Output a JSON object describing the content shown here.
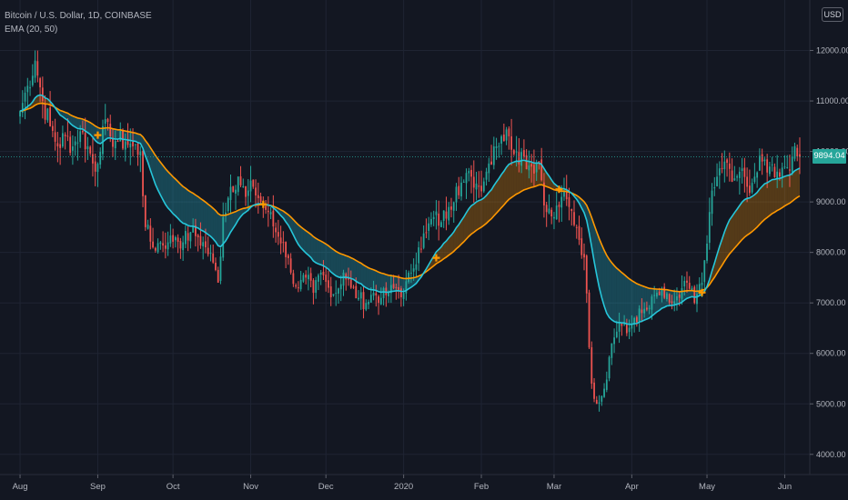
{
  "header": {
    "symbol_line": "Bitcoin / U.S. Dollar, 1D, COINBASE",
    "indicator_line": "EMA (20, 50)",
    "currency_button": "USD"
  },
  "price_badge": "9894.04",
  "colors": {
    "background": "#131722",
    "grid": "#1f2433",
    "up_candle": "#26a69a",
    "down_candle": "#ef5350",
    "ema_fast": "#26c6da",
    "ema_slow": "#ff9800",
    "bull_fill": "#ff9800",
    "bear_fill": "#26c6da",
    "cross_marker": "#ff9800"
  },
  "chart_data": {
    "type": "line",
    "title": "Bitcoin / U.S. Dollar, 1D, COINBASE",
    "y_axis": {
      "ticks": [
        4000,
        5000,
        6000,
        7000,
        8000,
        9000,
        10000,
        11000,
        12000
      ],
      "labels": [
        "4000.00",
        "5000.00",
        "6000.00",
        "7000.00",
        "8000.00",
        "9000.00",
        "10000.00",
        "11000.00",
        "12000.00"
      ],
      "range": [
        3600,
        13000
      ]
    },
    "x_axis": {
      "labels": [
        "Aug",
        "Sep",
        "Oct",
        "Nov",
        "Dec",
        "2020",
        "Feb",
        "Mar",
        "Apr",
        "May",
        "Jun"
      ],
      "label_days": [
        0,
        31,
        61,
        92,
        122,
        153,
        184,
        213,
        244,
        274,
        305
      ],
      "range_days": [
        -8,
        315
      ]
    },
    "last_price": 9894.04,
    "close_anchors": [
      [
        0,
        10800
      ],
      [
        3,
        11300
      ],
      [
        6,
        11800
      ],
      [
        9,
        11000
      ],
      [
        12,
        10500
      ],
      [
        15,
        10100
      ],
      [
        18,
        10300
      ],
      [
        21,
        10100
      ],
      [
        24,
        10400
      ],
      [
        27,
        10100
      ],
      [
        30,
        9600
      ],
      [
        33,
        10500
      ],
      [
        36,
        10300
      ],
      [
        39,
        10200
      ],
      [
        42,
        10200
      ],
      [
        45,
        10100
      ],
      [
        48,
        10000
      ],
      [
        50,
        8500
      ],
      [
        53,
        8100
      ],
      [
        56,
        8200
      ],
      [
        59,
        8200
      ],
      [
        62,
        8300
      ],
      [
        65,
        8200
      ],
      [
        68,
        8400
      ],
      [
        71,
        8300
      ],
      [
        74,
        8100
      ],
      [
        77,
        7800
      ],
      [
        79,
        7400
      ],
      [
        81,
        8700
      ],
      [
        84,
        9300
      ],
      [
        87,
        9500
      ],
      [
        90,
        9100
      ],
      [
        93,
        9300
      ],
      [
        96,
        9000
      ],
      [
        99,
        8800
      ],
      [
        102,
        8400
      ],
      [
        105,
        8200
      ],
      [
        108,
        7600
      ],
      [
        111,
        7300
      ],
      [
        114,
        7500
      ],
      [
        117,
        7200
      ],
      [
        120,
        7600
      ],
      [
        123,
        7300
      ],
      [
        126,
        7200
      ],
      [
        129,
        7600
      ],
      [
        132,
        7300
      ],
      [
        135,
        7100
      ],
      [
        138,
        7000
      ],
      [
        141,
        7200
      ],
      [
        144,
        7100
      ],
      [
        147,
        7200
      ],
      [
        150,
        7300
      ],
      [
        153,
        7200
      ],
      [
        156,
        7600
      ],
      [
        159,
        8100
      ],
      [
        162,
        8400
      ],
      [
        165,
        8700
      ],
      [
        168,
        8600
      ],
      [
        171,
        8900
      ],
      [
        174,
        9300
      ],
      [
        177,
        9400
      ],
      [
        180,
        9500
      ],
      [
        183,
        9300
      ],
      [
        186,
        9600
      ],
      [
        189,
        10100
      ],
      [
        192,
        10300
      ],
      [
        195,
        10300
      ],
      [
        198,
        10000
      ],
      [
        201,
        9900
      ],
      [
        204,
        9700
      ],
      [
        207,
        9800
      ],
      [
        210,
        8800
      ],
      [
        213,
        8700
      ],
      [
        216,
        9100
      ],
      [
        219,
        8900
      ],
      [
        222,
        8500
      ],
      [
        225,
        7900
      ],
      [
        228,
        5400
      ],
      [
        230,
        5000
      ],
      [
        233,
        5300
      ],
      [
        236,
        6200
      ],
      [
        239,
        6600
      ],
      [
        242,
        6400
      ],
      [
        245,
        6700
      ],
      [
        248,
        6800
      ],
      [
        251,
        6900
      ],
      [
        254,
        7200
      ],
      [
        257,
        7100
      ],
      [
        260,
        7000
      ],
      [
        263,
        7100
      ],
      [
        266,
        7400
      ],
      [
        269,
        7000
      ],
      [
        272,
        7400
      ],
      [
        275,
        8800
      ],
      [
        278,
        9500
      ],
      [
        281,
        9800
      ],
      [
        284,
        9400
      ],
      [
        287,
        9600
      ],
      [
        290,
        9300
      ],
      [
        293,
        9500
      ],
      [
        296,
        9800
      ],
      [
        299,
        9700
      ],
      [
        302,
        9600
      ],
      [
        305,
        9700
      ],
      [
        308,
        9900
      ],
      [
        311,
        9894
      ]
    ],
    "cross_markers": [
      {
        "day": 31,
        "type": "bear"
      },
      {
        "day": 97,
        "type": "bull"
      },
      {
        "day": 166,
        "type": "bull"
      },
      {
        "day": 215,
        "type": "bear"
      },
      {
        "day": 272,
        "type": "bull"
      }
    ],
    "series": [
      {
        "name": "EMA 20",
        "period": 20
      },
      {
        "name": "EMA 50",
        "period": 50
      }
    ]
  }
}
